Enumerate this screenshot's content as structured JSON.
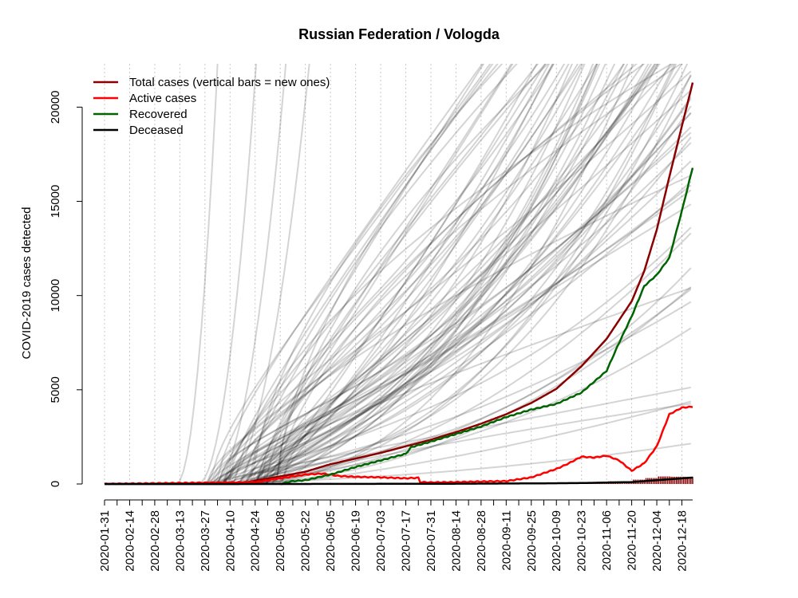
{
  "chart_data": {
    "type": "line",
    "title": "Russian Federation / Vologda",
    "xlabel": "",
    "ylabel": "COVID-2019 cases detected",
    "x_start": "2020-01-31",
    "x_end": "2020-12-24",
    "xlim": [
      "2020-01-31",
      "2020-12-24"
    ],
    "ylim": [
      0,
      22300
    ],
    "grid": "vertical dotted at each x tick",
    "legend_position": "top-left",
    "y_ticks": [
      0,
      5000,
      10000,
      15000,
      20000
    ],
    "x_tick_labels": [
      "2020-01-31",
      "2020-02-14",
      "2020-02-28",
      "2020-03-13",
      "2020-03-27",
      "2020-04-10",
      "2020-04-24",
      "2020-05-08",
      "2020-05-22",
      "2020-06-05",
      "2020-06-19",
      "2020-07-03",
      "2020-07-17",
      "2020-07-31",
      "2020-08-14",
      "2020-08-28",
      "2020-09-11",
      "2020-09-25",
      "2020-10-09",
      "2020-10-23",
      "2020-11-06",
      "2020-11-20",
      "2020-12-04",
      "2020-12-18"
    ],
    "colors": {
      "total": "#8b0000",
      "active": "#ff0000",
      "recovered": "#006400",
      "deceased": "#000000",
      "background_regions": "#bebebe"
    },
    "series": [
      {
        "name": "Total cases (vertical bars = new ones)",
        "color": "#8b0000",
        "points": [
          [
            "2020-01-31",
            0
          ],
          [
            "2020-04-15",
            0
          ],
          [
            "2020-04-25",
            200
          ],
          [
            "2020-05-08",
            400
          ],
          [
            "2020-05-22",
            650
          ],
          [
            "2020-06-05",
            1050
          ],
          [
            "2020-06-19",
            1350
          ],
          [
            "2020-07-03",
            1650
          ],
          [
            "2020-07-17",
            2000
          ],
          [
            "2020-07-31",
            2350
          ],
          [
            "2020-08-14",
            2750
          ],
          [
            "2020-08-28",
            3200
          ],
          [
            "2020-09-11",
            3700
          ],
          [
            "2020-09-25",
            4300
          ],
          [
            "2020-10-09",
            5050
          ],
          [
            "2020-10-23",
            6250
          ],
          [
            "2020-11-06",
            7700
          ],
          [
            "2020-11-20",
            9700
          ],
          [
            "2020-11-27",
            11300
          ],
          [
            "2020-12-04",
            13500
          ],
          [
            "2020-12-11",
            16300
          ],
          [
            "2020-12-18",
            19000
          ],
          [
            "2020-12-24",
            21300
          ]
        ]
      },
      {
        "name": "Active cases",
        "color": "#ff0000",
        "points": [
          [
            "2020-01-31",
            0
          ],
          [
            "2020-04-25",
            100
          ],
          [
            "2020-05-08",
            300
          ],
          [
            "2020-05-22",
            500
          ],
          [
            "2020-06-01",
            550
          ],
          [
            "2020-06-10",
            420
          ],
          [
            "2020-06-19",
            380
          ],
          [
            "2020-07-03",
            350
          ],
          [
            "2020-07-17",
            300
          ],
          [
            "2020-07-24",
            330
          ],
          [
            "2020-07-25",
            100
          ],
          [
            "2020-07-31",
            80
          ],
          [
            "2020-08-14",
            100
          ],
          [
            "2020-08-28",
            130
          ],
          [
            "2020-09-11",
            150
          ],
          [
            "2020-09-25",
            350
          ],
          [
            "2020-10-09",
            800
          ],
          [
            "2020-10-16",
            1100
          ],
          [
            "2020-10-23",
            1450
          ],
          [
            "2020-10-30",
            1400
          ],
          [
            "2020-11-06",
            1500
          ],
          [
            "2020-11-13",
            1250
          ],
          [
            "2020-11-20",
            700
          ],
          [
            "2020-11-27",
            1100
          ],
          [
            "2020-12-04",
            2000
          ],
          [
            "2020-12-11",
            3700
          ],
          [
            "2020-12-18",
            4050
          ],
          [
            "2020-12-24",
            4100
          ]
        ]
      },
      {
        "name": "Recovered",
        "color": "#006400",
        "points": [
          [
            "2020-05-08",
            0
          ],
          [
            "2020-05-15",
            150
          ],
          [
            "2020-05-22",
            200
          ],
          [
            "2020-06-05",
            500
          ],
          [
            "2020-06-19",
            900
          ],
          [
            "2020-07-03",
            1250
          ],
          [
            "2020-07-17",
            1600
          ],
          [
            "2020-07-20",
            1950
          ],
          [
            "2020-07-31",
            2250
          ],
          [
            "2020-08-14",
            2650
          ],
          [
            "2020-08-28",
            3050
          ],
          [
            "2020-09-11",
            3550
          ],
          [
            "2020-09-25",
            3950
          ],
          [
            "2020-10-09",
            4250
          ],
          [
            "2020-10-23",
            4850
          ],
          [
            "2020-11-06",
            6000
          ],
          [
            "2020-11-13",
            7500
          ],
          [
            "2020-11-20",
            8900
          ],
          [
            "2020-11-27",
            10500
          ],
          [
            "2020-12-04",
            11100
          ],
          [
            "2020-12-11",
            12000
          ],
          [
            "2020-12-18",
            14500
          ],
          [
            "2020-12-24",
            16800
          ]
        ]
      },
      {
        "name": "Deceased",
        "color": "#000000",
        "points": [
          [
            "2020-01-31",
            0
          ],
          [
            "2020-05-08",
            0
          ],
          [
            "2020-07-31",
            10
          ],
          [
            "2020-09-25",
            30
          ],
          [
            "2020-10-23",
            50
          ],
          [
            "2020-11-20",
            100
          ],
          [
            "2020-12-04",
            200
          ],
          [
            "2020-12-24",
            340
          ]
        ]
      }
    ]
  }
}
